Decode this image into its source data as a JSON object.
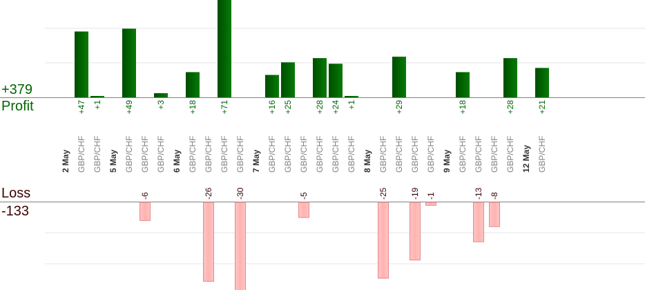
{
  "summary": {
    "profit_total": "+379",
    "profit_label": "Profit",
    "loss_label": "Loss",
    "loss_total": "-133"
  },
  "colors": {
    "profit_bar": "#006400",
    "profit_text": "#006400",
    "loss_bar": "#ffb3b3",
    "loss_bar_border": "#e58a8a",
    "loss_text": "#3a0000",
    "axis": "#808080",
    "grid": "#e6e6e6",
    "date_label": "#333333",
    "pair_label": "#808080"
  },
  "chart_data": {
    "type": "bar",
    "grid": true,
    "profit_axis": {
      "ylim": [
        0,
        70
      ]
    },
    "loss_axis": {
      "ylim": [
        -25,
        0
      ]
    },
    "slots": [
      {
        "kind": "date",
        "label": "2 May"
      },
      {
        "kind": "trade",
        "label": "GBP/CHF",
        "value": 47,
        "value_label": "+47"
      },
      {
        "kind": "trade",
        "label": "GBP/CHF",
        "value": 1,
        "value_label": "+1"
      },
      {
        "kind": "date",
        "label": "5 May"
      },
      {
        "kind": "trade",
        "label": "GBP/CHF",
        "value": 49,
        "value_label": "+49"
      },
      {
        "kind": "trade",
        "label": "GBP/CHF",
        "value": -6,
        "value_label": "-6"
      },
      {
        "kind": "trade",
        "label": "GBP/CHF",
        "value": 3,
        "value_label": "+3"
      },
      {
        "kind": "date",
        "label": "6 May"
      },
      {
        "kind": "trade",
        "label": "GBP/CHF",
        "value": 18,
        "value_label": "+18"
      },
      {
        "kind": "trade",
        "label": "GBP/CHF",
        "value": -26,
        "value_label": "-26"
      },
      {
        "kind": "trade",
        "label": "GBP/CHF",
        "value": 71,
        "value_label": "+71"
      },
      {
        "kind": "trade",
        "label": "GBP/CHF",
        "value": -30,
        "value_label": "-30"
      },
      {
        "kind": "date",
        "label": "7 May"
      },
      {
        "kind": "trade",
        "label": "GBP/CHF",
        "value": 16,
        "value_label": "+16"
      },
      {
        "kind": "trade",
        "label": "GBP/CHF",
        "value": 25,
        "value_label": "+25"
      },
      {
        "kind": "trade",
        "label": "GBP/CHF",
        "value": -5,
        "value_label": "-5"
      },
      {
        "kind": "trade",
        "label": "GBP/CHF",
        "value": 28,
        "value_label": "+28"
      },
      {
        "kind": "trade",
        "label": "GBP/CHF",
        "value": 24,
        "value_label": "+24"
      },
      {
        "kind": "trade",
        "label": "GBP/CHF",
        "value": 1,
        "value_label": "+1"
      },
      {
        "kind": "date",
        "label": "8 May"
      },
      {
        "kind": "trade",
        "label": "GBP/CHF",
        "value": -25,
        "value_label": "-25"
      },
      {
        "kind": "trade",
        "label": "GBP/CHF",
        "value": 29,
        "value_label": "+29"
      },
      {
        "kind": "trade",
        "label": "GBP/CHF",
        "value": -19,
        "value_label": "-19"
      },
      {
        "kind": "trade",
        "label": "GBP/CHF",
        "value": -1,
        "value_label": "-1"
      },
      {
        "kind": "date",
        "label": "9 May"
      },
      {
        "kind": "trade",
        "label": "GBP/CHF",
        "value": 18,
        "value_label": "+18"
      },
      {
        "kind": "trade",
        "label": "GBP/CHF",
        "value": -13,
        "value_label": "-13"
      },
      {
        "kind": "trade",
        "label": "GBP/CHF",
        "value": -8,
        "value_label": "-8"
      },
      {
        "kind": "trade",
        "label": "GBP/CHF",
        "value": 28,
        "value_label": "+28"
      },
      {
        "kind": "date",
        "label": "12 May"
      },
      {
        "kind": "trade",
        "label": "GBP/CHF",
        "value": 21,
        "value_label": "+21"
      }
    ]
  }
}
